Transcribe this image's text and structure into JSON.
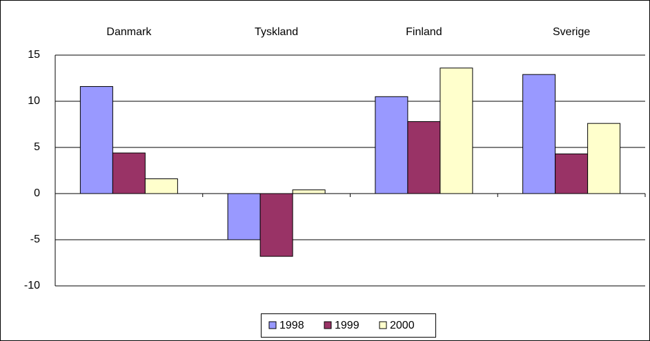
{
  "chart_data": {
    "type": "bar",
    "categories": [
      "Danmark",
      "Tyskland",
      "Finland",
      "Sverige"
    ],
    "series": [
      {
        "name": "1998",
        "color": "#9999ff",
        "values": [
          11.6,
          -5.0,
          10.5,
          12.9
        ]
      },
      {
        "name": "1999",
        "color": "#993366",
        "values": [
          4.4,
          -6.8,
          7.8,
          4.3
        ]
      },
      {
        "name": "2000",
        "color": "#ffffcc",
        "values": [
          1.6,
          0.4,
          13.6,
          7.6
        ]
      }
    ],
    "ylim": [
      -10,
      15
    ],
    "yticks": [
      -10,
      -5,
      0,
      5,
      10,
      15
    ],
    "grid": true,
    "legend": "bottom"
  }
}
